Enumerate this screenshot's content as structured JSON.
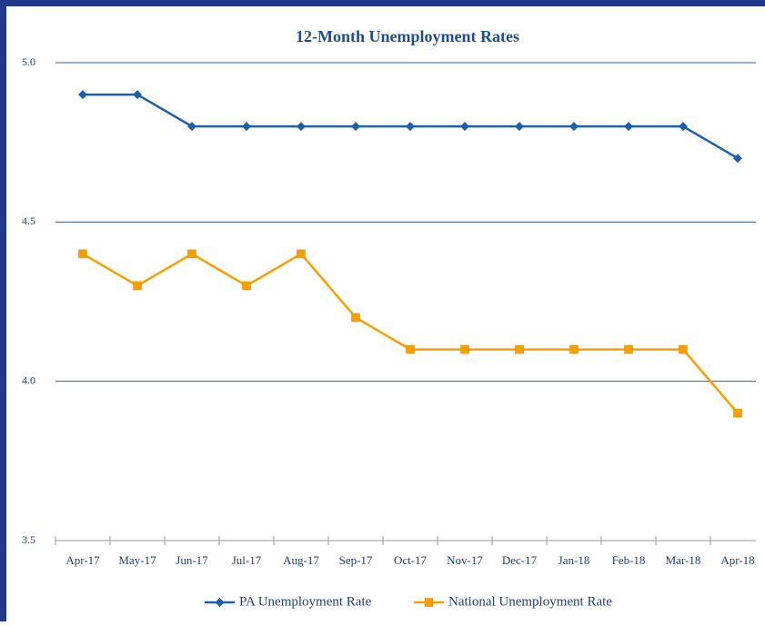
{
  "chart_data": {
    "type": "line",
    "title": "12-Month Unemployment Rates",
    "categories": [
      "Apr-17",
      "May-17",
      "Jun-17",
      "Jul-17",
      "Aug-17",
      "Sep-17",
      "Oct-17",
      "Nov-17",
      "Dec-17",
      "Jan-18",
      "Feb-18",
      "Mar-18",
      "Apr-18"
    ],
    "series": [
      {
        "name": "PA Unemployment Rate",
        "color": "#1f5fa8",
        "marker": "diamond",
        "values": [
          4.9,
          4.9,
          4.8,
          4.8,
          4.8,
          4.8,
          4.8,
          4.8,
          4.8,
          4.8,
          4.8,
          4.8,
          4.7
        ]
      },
      {
        "name": "National Unemployment Rate",
        "color": "#f5a000",
        "marker": "square",
        "values": [
          4.4,
          4.3,
          4.4,
          4.3,
          4.4,
          4.2,
          4.1,
          4.1,
          4.1,
          4.1,
          4.1,
          4.1,
          3.9
        ]
      }
    ],
    "ylim": [
      3.5,
      5
    ],
    "yticks": [
      3.5,
      {
        "value": 4,
        "label": "4.0"
      },
      4.5,
      {
        "value": 5,
        "label": "5.0"
      }
    ],
    "grid": true,
    "legend": "bottom"
  }
}
